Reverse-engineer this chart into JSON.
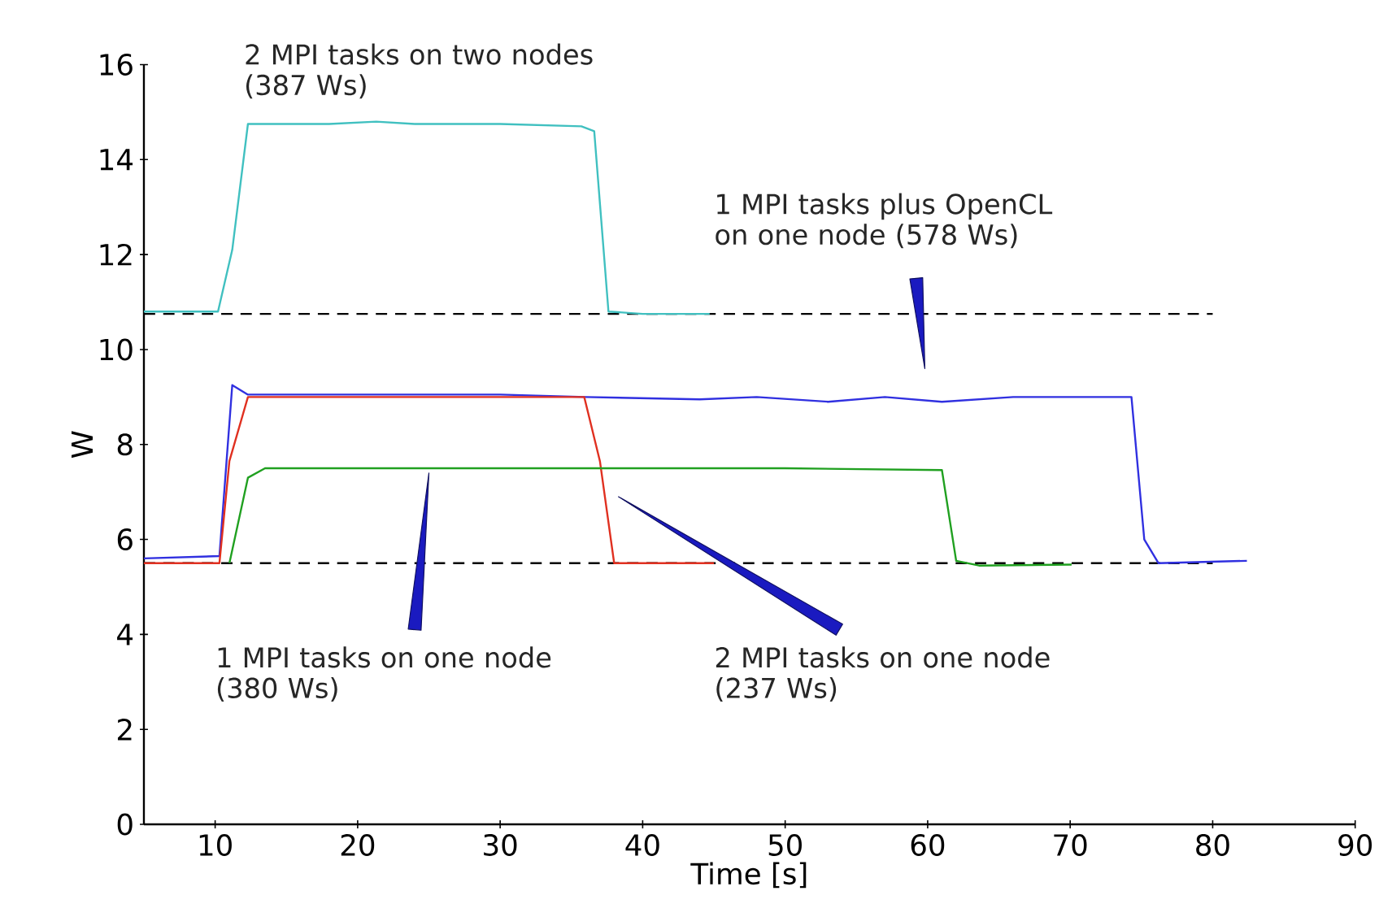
{
  "chart_data": {
    "type": "line",
    "xlabel": "Time [s]",
    "ylabel": "W",
    "xlim": [
      5,
      90
    ],
    "ylim": [
      0,
      16
    ],
    "xticks": [
      10,
      20,
      30,
      40,
      50,
      60,
      70,
      80,
      90
    ],
    "yticks": [
      0,
      2,
      4,
      6,
      8,
      10,
      12,
      14,
      16
    ],
    "grid": false,
    "marker": "none",
    "series": [
      {
        "color": "#000000",
        "line_style": "dashed",
        "x": [
          5,
          80
        ],
        "values": [
          10.75,
          10.75
        ]
      },
      {
        "color": "#000000",
        "line_style": "dashed",
        "x": [
          5,
          80
        ],
        "values": [
          5.5,
          5.5
        ]
      },
      {
        "color": "#40c0c0",
        "line_style": "solid",
        "x": [
          5,
          10.2,
          11.2,
          12.3,
          18,
          21.3,
          24,
          30,
          35.7,
          36.6,
          37.6,
          40,
          44.7
        ],
        "values": [
          10.8,
          10.8,
          12.1,
          14.75,
          14.75,
          14.8,
          14.75,
          14.75,
          14.7,
          14.6,
          10.8,
          10.75,
          10.75
        ]
      },
      {
        "color": "#3030e0",
        "line_style": "solid",
        "x": [
          5,
          10.3,
          11.2,
          12.3,
          20,
          25,
          30,
          36,
          44,
          48,
          53,
          57,
          61,
          66,
          70,
          74.3,
          75.2,
          76.2,
          82.4
        ],
        "values": [
          5.6,
          5.65,
          9.25,
          9.05,
          9.05,
          9.05,
          9.05,
          9.0,
          8.95,
          9.0,
          8.9,
          9.0,
          8.9,
          9.0,
          9.0,
          9.0,
          6.0,
          5.5,
          5.55
        ]
      },
      {
        "color": "#e03020",
        "line_style": "solid",
        "x": [
          5,
          10.3,
          11.0,
          12.3,
          20,
          30,
          35.9,
          37.0,
          38.0,
          45
        ],
        "values": [
          5.5,
          5.5,
          7.65,
          9.0,
          9.0,
          9.0,
          9.0,
          7.65,
          5.5,
          5.5
        ]
      },
      {
        "color": "#20a020",
        "line_style": "solid",
        "x": [
          11.0,
          12.3,
          13.5,
          20,
          30,
          40,
          50,
          61.0,
          62.0,
          63.6,
          70.1
        ],
        "values": [
          5.5,
          7.3,
          7.5,
          7.5,
          7.5,
          7.5,
          7.5,
          7.46,
          5.55,
          5.45,
          5.47
        ]
      }
    ],
    "annotations": [
      "2 MPI tasks on two nodes (387 Ws)",
      "1 MPI tasks plus OpenCL on one node (578 Ws)",
      "1 MPI tasks on one node (380 Ws)",
      "2 MPI tasks on one node (237 Ws)"
    ]
  }
}
